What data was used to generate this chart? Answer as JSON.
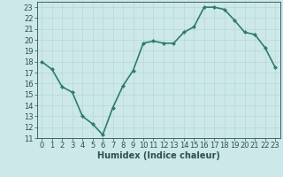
{
  "x": [
    0,
    1,
    2,
    3,
    4,
    5,
    6,
    7,
    8,
    9,
    10,
    11,
    12,
    13,
    14,
    15,
    16,
    17,
    18,
    19,
    20,
    21,
    22,
    23
  ],
  "y": [
    18,
    17.3,
    15.7,
    15.2,
    13.0,
    12.3,
    11.3,
    13.8,
    15.8,
    17.2,
    19.7,
    19.9,
    19.7,
    19.7,
    20.7,
    21.2,
    23.0,
    23.0,
    22.8,
    21.8,
    20.7,
    20.5,
    19.3,
    17.5
  ],
  "line_color": "#2e7d6e",
  "marker": "D",
  "marker_size": 2.0,
  "bg_color": "#cce8e8",
  "grid_color": "#b8d8d8",
  "xlabel": "Humidex (Indice chaleur)",
  "xlim": [
    -0.5,
    23.5
  ],
  "ylim": [
    11,
    23.5
  ],
  "yticks": [
    11,
    12,
    13,
    14,
    15,
    16,
    17,
    18,
    19,
    20,
    21,
    22,
    23
  ],
  "xticks": [
    0,
    1,
    2,
    3,
    4,
    5,
    6,
    7,
    8,
    9,
    10,
    11,
    12,
    13,
    14,
    15,
    16,
    17,
    18,
    19,
    20,
    21,
    22,
    23
  ],
  "font_color": "#2e5050",
  "linewidth": 1.2,
  "tick_fontsize": 6.0,
  "xlabel_fontsize": 7.0
}
